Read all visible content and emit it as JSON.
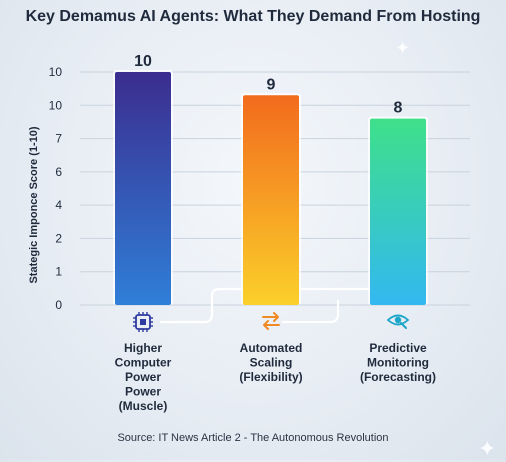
{
  "title": "Key Demamus AI Agents: What They Demand From Hosting",
  "source": "Source: IT News Article 2 - The Autonomous Revolution",
  "chart_data": {
    "type": "bar",
    "ylabel": "Stategic Imponce Score (1-10)",
    "y_tick_labels": [
      "0",
      "1",
      "2",
      "4",
      "6",
      "7",
      "10",
      "10"
    ],
    "categories": [
      {
        "lines": [
          "Higher",
          "Computer",
          "Power",
          "Power",
          "(Muscle)"
        ],
        "icon": "cpu-chip-icon"
      },
      {
        "lines": [
          "Automated",
          "Scaling",
          "(Flexibility)"
        ],
        "icon": "swap-arrows-icon"
      },
      {
        "lines": [
          "Predictive",
          "Monitoring",
          "(Forecasting)"
        ],
        "icon": "eye-scan-icon"
      }
    ],
    "values": [
      10,
      9,
      8
    ],
    "value_labels": [
      "10",
      "9",
      "8"
    ],
    "ylim": [
      0,
      10
    ],
    "grid": true,
    "colors": {
      "bar1_top": "#3b2d8f",
      "bar1_bottom": "#2f7fd8",
      "bar2_top": "#f26b1d",
      "bar2_bottom": "#fbd02a",
      "bar3_top": "#3ee08a",
      "bar3_bottom": "#33b8f0",
      "icon1": "#2d3aa0",
      "icon2": "#f08a24",
      "icon3": "#1aa5c9"
    }
  }
}
